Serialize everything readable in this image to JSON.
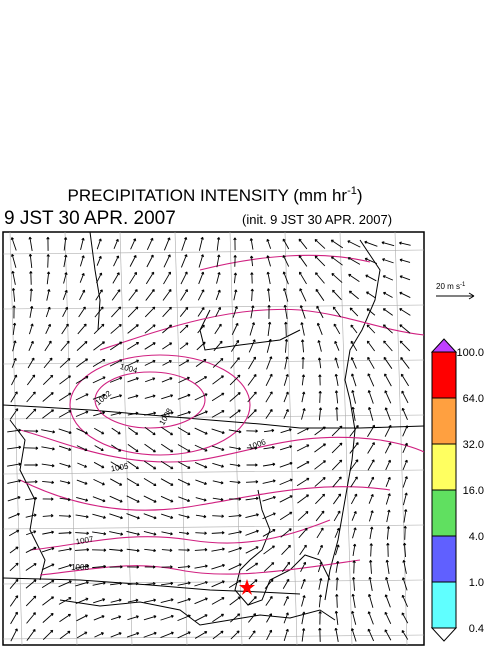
{
  "header": {
    "title": "PRECIPITATION INTENSITY (mm hr",
    "title_sup": "-1",
    "title_end": ")",
    "valid_time": "9 JST 30 APR. 2007",
    "init_time": "(init. 9 JST 30 APR. 2007)"
  },
  "reference_vector": {
    "label": "20 m s",
    "label_sup": "-1"
  },
  "colorbar": {
    "levels": [
      {
        "label": "100.0",
        "color": "#ff0000"
      },
      {
        "label": "64.0",
        "color": "#ffa040"
      },
      {
        "label": "32.0",
        "color": "#ffff60"
      },
      {
        "label": "16.0",
        "color": "#60e060"
      },
      {
        "label": "4.0",
        "color": "#6060ff"
      },
      {
        "label": "1.0",
        "color": "#60ffff"
      },
      {
        "label": "0.4",
        "color": "#ffffff"
      }
    ],
    "top_color": "#c040ff"
  },
  "contours": {
    "labels": [
      "1004",
      "1002",
      "1008",
      "1006",
      "1005",
      "1007",
      "1008"
    ]
  }
}
